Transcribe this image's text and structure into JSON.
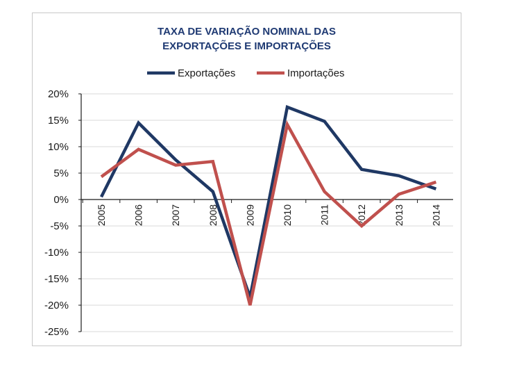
{
  "chart_data": {
    "type": "line",
    "title_lines": [
      "TAXA DE VARIAÇÃO NOMINAL DAS",
      "EXPORTAÇÕES E IMPORTAÇÕES"
    ],
    "categories": [
      "2005",
      "2006",
      "2007",
      "2008",
      "2009",
      "2010",
      "2011",
      "2012",
      "2013",
      "2014"
    ],
    "series": [
      {
        "name": "Exportações",
        "color": "#1f3864",
        "values": [
          0.5,
          14.5,
          7.5,
          1.5,
          -18.5,
          17.5,
          14.8,
          5.7,
          4.5,
          2.0
        ]
      },
      {
        "name": "Importações",
        "color": "#c0504d",
        "values": [
          4.3,
          9.5,
          6.5,
          7.2,
          -20.0,
          14.2,
          1.5,
          -5.0,
          1.0,
          3.3
        ]
      }
    ],
    "ylim": [
      -25,
      20
    ],
    "yticks": [
      "20%",
      "15%",
      "10%",
      "5%",
      "0%",
      "-5%",
      "-10%",
      "-15%",
      "-20%",
      "-25%"
    ],
    "ytick_values": [
      20,
      15,
      10,
      5,
      0,
      -5,
      -10,
      -15,
      -20,
      -25
    ],
    "grid": true,
    "legend_position": "top"
  }
}
